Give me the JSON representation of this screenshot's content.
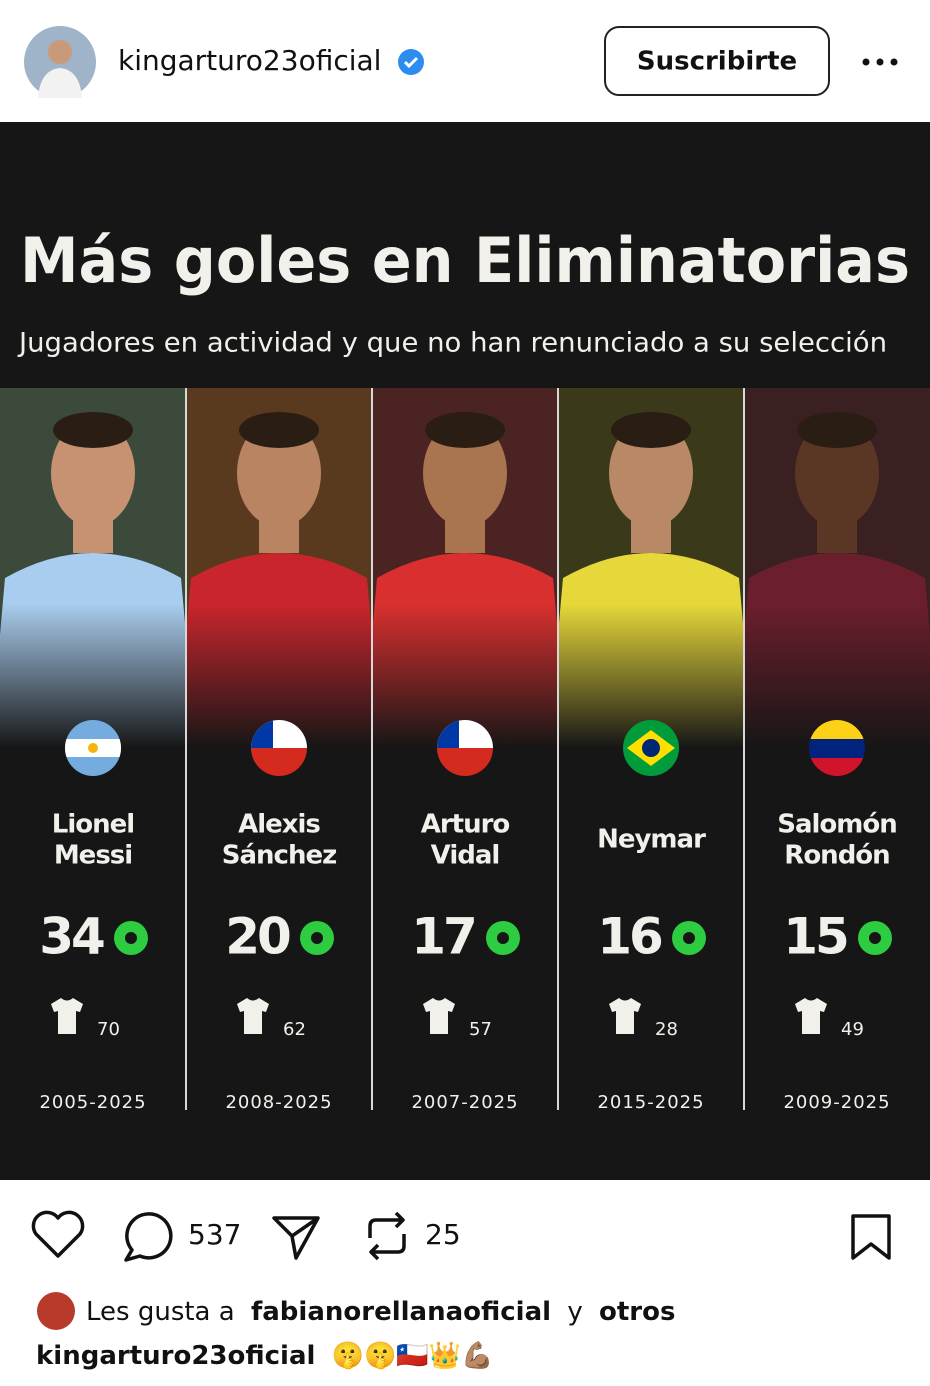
{
  "header": {
    "username": "kingarturo23oficial",
    "subscribe": "Suscribirte"
  },
  "post": {
    "title": "Más goles en Eliminatorias",
    "subtitle": "Jugadores en actividad y que no han renunciado a su selección",
    "players": [
      {
        "name": [
          "Lionel",
          "Messi"
        ],
        "goals": 34,
        "caps": 70,
        "years": "2005-2025"
      },
      {
        "name": [
          "Alexis",
          "Sánchez"
        ],
        "goals": 20,
        "caps": 62,
        "years": "2008-2025"
      },
      {
        "name": [
          "Arturo",
          "Vidal"
        ],
        "goals": 17,
        "caps": 57,
        "years": "2007-2025"
      },
      {
        "name": [
          "Neymar"
        ],
        "goals": 16,
        "caps": 28,
        "years": "2015-2025"
      },
      {
        "name": [
          "Salomón",
          "Rondón"
        ],
        "goals": 15,
        "caps": 49,
        "years": "2009-2025"
      }
    ]
  },
  "actions": {
    "comments": 537,
    "reposts": 25
  },
  "likes": {
    "prefix": "Les gusta a",
    "user": "fabianorellanaoficial",
    "connector": "y",
    "others": "otros"
  },
  "caption": {
    "user": "kingarturo23oficial",
    "text": "🤫🤫🇨🇱👑💪🏽"
  }
}
